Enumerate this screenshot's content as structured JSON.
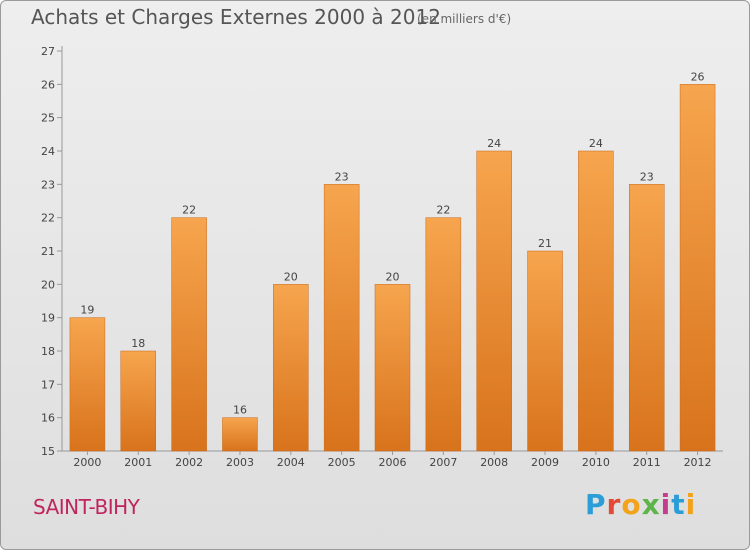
{
  "title": "Achats et Charges Externes 2000 à 2012",
  "subtitle": "(en milliers d'€)",
  "commune": "SAINT-BIHY",
  "logo": [
    "P",
    "r",
    "o",
    "x",
    "i",
    "t",
    "i"
  ],
  "colors": {
    "bar_top": "#f6a54e",
    "bar_bottom": "#d8731c",
    "commune": "#c0245c",
    "axis": "#999999"
  },
  "chart_data": {
    "type": "bar",
    "title": "Achats et Charges Externes 2000 à 2012",
    "subtitle": "(en milliers d'€)",
    "categories": [
      "2000",
      "2001",
      "2002",
      "2003",
      "2004",
      "2005",
      "2006",
      "2007",
      "2008",
      "2009",
      "2010",
      "2011",
      "2012"
    ],
    "values": [
      19,
      18,
      22,
      16,
      20,
      23,
      20,
      22,
      24,
      21,
      24,
      23,
      26
    ],
    "ylim": [
      15,
      27
    ],
    "yticks": [
      15,
      16,
      17,
      18,
      19,
      20,
      21,
      22,
      23,
      24,
      25,
      26,
      27
    ],
    "grid": false,
    "data_labels": true
  }
}
